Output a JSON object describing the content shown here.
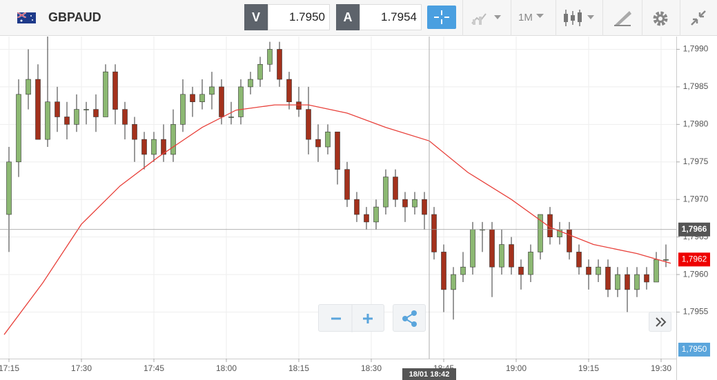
{
  "toolbar": {
    "symbol": "GBPAUD",
    "bid_label": "V",
    "bid": "1.7950",
    "ask_label": "A",
    "ask": "1.7954",
    "timeframe": "1M"
  },
  "chart_data": {
    "type": "candlestick",
    "x": [
      1035,
      1037,
      1039,
      1041,
      1043,
      1045,
      1047,
      1049,
      1051,
      1053,
      1055,
      1057,
      1059,
      1061,
      1063,
      1065,
      1067,
      1069,
      1071,
      1073,
      1075,
      1077,
      1079,
      1081,
      1083,
      1085,
      1087,
      1089,
      1091,
      1093,
      1095,
      1097,
      1099,
      1101,
      1103,
      1105,
      1107,
      1109,
      1111,
      1113,
      1115,
      1117,
      1119,
      1121,
      1123,
      1125,
      1127,
      1129,
      1131,
      1133,
      1135,
      1137,
      1139,
      1141,
      1143,
      1145,
      1147,
      1149,
      1151,
      1153,
      1155,
      1157,
      1159,
      1161,
      1163,
      1165,
      1167,
      1169,
      1171
    ],
    "open": [
      1.7968,
      1.7975,
      1.7984,
      1.7986,
      1.7978,
      1.7983,
      1.7981,
      1.798,
      1.7982,
      1.7982,
      1.7981,
      1.7987,
      1.7982,
      1.798,
      1.7978,
      1.7976,
      1.7978,
      1.7976,
      1.798,
      1.7984,
      1.7983,
      1.7984,
      1.7985,
      1.7981,
      1.7981,
      1.7985,
      1.7986,
      1.7988,
      1.799,
      1.7986,
      1.7983,
      1.7982,
      1.7978,
      1.7977,
      1.7979,
      1.7974,
      1.797,
      1.7968,
      1.7967,
      1.7969,
      1.7973,
      1.797,
      1.7969,
      1.797,
      1.7968,
      1.7963,
      1.7958,
      1.796,
      1.7961,
      1.7966,
      1.7966,
      1.7961,
      1.7964,
      1.7961,
      1.796,
      1.7963,
      1.7968,
      1.7965,
      1.7966,
      1.7963,
      1.7961,
      1.796,
      1.7961,
      1.7958,
      1.796,
      1.7958,
      1.796,
      1.7959,
      1.7962
    ],
    "high": [
      1.7977,
      1.7986,
      1.799,
      1.7988,
      1.7992,
      1.7985,
      1.7983,
      1.7984,
      1.7983,
      1.7984,
      1.7988,
      1.7988,
      1.7983,
      1.7981,
      1.7979,
      1.7979,
      1.798,
      1.7982,
      1.7986,
      1.7985,
      1.7986,
      1.7987,
      1.7986,
      1.7983,
      1.7986,
      1.7987,
      1.7989,
      1.7991,
      1.7991,
      1.7987,
      1.7985,
      1.7985,
      1.798,
      1.798,
      1.7979,
      1.7975,
      1.7971,
      1.7969,
      1.797,
      1.7974,
      1.7974,
      1.7971,
      1.7971,
      1.7971,
      1.7969,
      1.7964,
      1.7961,
      1.7963,
      1.7967,
      1.7967,
      1.7967,
      1.7966,
      1.7965,
      1.7962,
      1.7964,
      1.7968,
      1.7969,
      1.7967,
      1.7967,
      1.7964,
      1.7962,
      1.7962,
      1.7962,
      1.7961,
      1.7961,
      1.7961,
      1.7961,
      1.7963,
      1.7964
    ],
    "low": [
      1.7963,
      1.7973,
      1.7982,
      1.7978,
      1.7977,
      1.7979,
      1.7978,
      1.7979,
      1.798,
      1.7979,
      1.7981,
      1.798,
      1.7978,
      1.7975,
      1.7974,
      1.7975,
      1.7975,
      1.7975,
      1.7979,
      1.7981,
      1.7982,
      1.7982,
      1.798,
      1.798,
      1.798,
      1.7984,
      1.7985,
      1.7987,
      1.7985,
      1.7982,
      1.7981,
      1.7976,
      1.7975,
      1.7976,
      1.7972,
      1.7969,
      1.7967,
      1.7966,
      1.7966,
      1.7968,
      1.7969,
      1.7967,
      1.7968,
      1.7966,
      1.7962,
      1.7955,
      1.7954,
      1.7959,
      1.796,
      1.7963,
      1.7957,
      1.796,
      1.796,
      1.7958,
      1.7959,
      1.7962,
      1.7964,
      1.7964,
      1.7962,
      1.796,
      1.7958,
      1.7959,
      1.7957,
      1.7957,
      1.7955,
      1.7957,
      1.7958,
      1.7959,
      1.7961
    ],
    "close": [
      1.7975,
      1.7984,
      1.7986,
      1.7978,
      1.7983,
      1.7981,
      1.798,
      1.7982,
      1.7982,
      1.7981,
      1.7987,
      1.7982,
      1.798,
      1.7978,
      1.7976,
      1.7978,
      1.7976,
      1.798,
      1.7984,
      1.7983,
      1.7984,
      1.7985,
      1.7981,
      1.7981,
      1.7985,
      1.7986,
      1.7988,
      1.799,
      1.7986,
      1.7983,
      1.7982,
      1.7978,
      1.7977,
      1.7979,
      1.7974,
      1.797,
      1.7968,
      1.7967,
      1.7969,
      1.7973,
      1.797,
      1.7969,
      1.797,
      1.7968,
      1.7963,
      1.7958,
      1.796,
      1.7961,
      1.7966,
      1.7966,
      1.7961,
      1.7964,
      1.7961,
      1.796,
      1.7963,
      1.7968,
      1.7965,
      1.7966,
      1.7963,
      1.7961,
      1.796,
      1.7961,
      1.7958,
      1.796,
      1.7958,
      1.796,
      1.7959,
      1.7962,
      1.7962
    ],
    "up_color": "#8cb872",
    "down_color": "#a3311c",
    "moving_average": {
      "color": "#e8403a",
      "x": [
        1034,
        1042,
        1050,
        1058,
        1066,
        1075,
        1082,
        1090,
        1097,
        1105,
        1113,
        1122,
        1130,
        1139,
        1147,
        1156,
        1165,
        1172
      ],
      "values": [
        1.7952,
        1.79589,
        1.79667,
        1.79718,
        1.79757,
        1.79796,
        1.79819,
        1.79826,
        1.79826,
        1.79815,
        1.79796,
        1.79778,
        1.79736,
        1.797,
        1.79663,
        1.7964,
        1.79628,
        1.79615
      ]
    },
    "xlim": [
      1034,
      1173
    ],
    "ylim": [
      1.79488,
      1.79917
    ],
    "xticks": [
      {
        "value": 1035,
        "label": "17:15"
      },
      {
        "value": 1050,
        "label": "17:30"
      },
      {
        "value": 1065,
        "label": "17:45"
      },
      {
        "value": 1080,
        "label": "18:00"
      },
      {
        "value": 1095,
        "label": "18:15"
      },
      {
        "value": 1110,
        "label": "18:30"
      },
      {
        "value": 1125,
        "label": "18:45"
      },
      {
        "value": 1140,
        "label": "19:00"
      },
      {
        "value": 1155,
        "label": "19:15"
      },
      {
        "value": 1170,
        "label": "19:30"
      }
    ],
    "yticks": [
      {
        "value": 1.7955,
        "label": "1,7955"
      },
      {
        "value": 1.796,
        "label": "1,7960"
      },
      {
        "value": 1.7965,
        "label": "1,7965"
      },
      {
        "value": 1.797,
        "label": "1,7970"
      },
      {
        "value": 1.7975,
        "label": "1,7975"
      },
      {
        "value": 1.798,
        "label": "1,7980"
      },
      {
        "value": 1.7985,
        "label": "1,7985"
      },
      {
        "value": 1.799,
        "label": "1,7990"
      }
    ],
    "grid": true,
    "crosshair": {
      "x": {
        "value": 1122,
        "label": "18/01 18:42"
      },
      "y": {
        "value": 1.7966,
        "label": "1,7966"
      }
    },
    "last_price": {
      "value": 1.7962,
      "label": "1,7962",
      "color": "#ee0000"
    },
    "scale_low": {
      "value": 1.795,
      "label": "1,7950",
      "color": "#5aa5dc"
    }
  }
}
